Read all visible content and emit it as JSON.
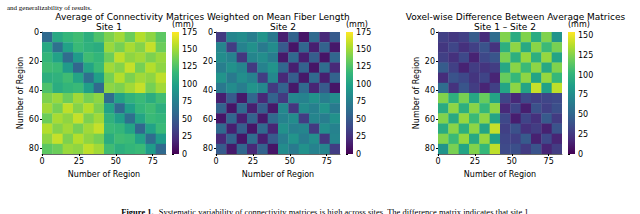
{
  "top_text": "and generalizability of results.",
  "group_titles": [
    "Average of Connectivity Matrices Weighted on Mean Fiber Length",
    "Voxel-wise Difference Between Average Matrices"
  ],
  "caption": {
    "label": "Figure 1.",
    "text": "Systematic variability of connectivity matrices is high across sites. The difference matrix indicates that site 1"
  },
  "chart_data": [
    {
      "type": "heatmap",
      "title": "Site 1",
      "xlabel": "Number of Region",
      "ylabel": "Number of Region",
      "xlim": [
        0,
        84
      ],
      "xticks": [
        0,
        25,
        50,
        75
      ],
      "ylim": [
        84,
        0
      ],
      "yticks": [
        0,
        20,
        40,
        60,
        80
      ],
      "color": "viridis",
      "edges": [
        0,
        7,
        14,
        21,
        28,
        35,
        42,
        49,
        56,
        63,
        70,
        77,
        84
      ],
      "values": [
        [
          60,
          105,
          115,
          120,
          110,
          125,
          140,
          150,
          135,
          155,
          145,
          130
        ],
        [
          105,
          65,
          100,
          118,
          112,
          108,
          148,
          138,
          152,
          142,
          160,
          135
        ],
        [
          115,
          100,
          62,
          95,
          120,
          115,
          135,
          158,
          145,
          150,
          140,
          148
        ],
        [
          120,
          118,
          95,
          58,
          102,
          118,
          150,
          142,
          160,
          138,
          155,
          145
        ],
        [
          110,
          112,
          120,
          102,
          64,
          98,
          138,
          155,
          140,
          150,
          145,
          158
        ],
        [
          125,
          108,
          115,
          118,
          98,
          60,
          145,
          140,
          150,
          160,
          138,
          150
        ],
        [
          140,
          148,
          135,
          150,
          138,
          145,
          62,
          100,
          112,
          118,
          108,
          120
        ],
        [
          150,
          138,
          158,
          142,
          155,
          140,
          100,
          60,
          98,
          115,
          120,
          110
        ],
        [
          135,
          152,
          145,
          160,
          140,
          150,
          112,
          98,
          64,
          102,
          118,
          115
        ],
        [
          155,
          142,
          150,
          138,
          150,
          160,
          118,
          115,
          102,
          58,
          100,
          118
        ],
        [
          145,
          160,
          140,
          155,
          145,
          138,
          108,
          120,
          118,
          100,
          62,
          96
        ],
        [
          130,
          135,
          148,
          145,
          158,
          150,
          120,
          110,
          115,
          118,
          96,
          60
        ]
      ],
      "colorbar": {
        "range": [
          0,
          175
        ],
        "ticks": [
          0,
          25,
          50,
          75,
          100,
          125,
          150,
          175
        ],
        "label": "(mm)"
      }
    },
    {
      "type": "heatmap",
      "title": "Site 2",
      "xlabel": "Number of Region",
      "xlim": [
        0,
        84
      ],
      "xticks": [
        0,
        25,
        50,
        75
      ],
      "ylim": [
        84,
        0
      ],
      "yticks": [
        0,
        20,
        40,
        60,
        80
      ],
      "color": "viridis",
      "edges": [
        0,
        7,
        14,
        21,
        28,
        35,
        42,
        49,
        56,
        63,
        70,
        77,
        84
      ],
      "values": [
        [
          30,
          80,
          85,
          75,
          90,
          70,
          15,
          55,
          10,
          60,
          20,
          50
        ],
        [
          80,
          32,
          78,
          88,
          72,
          85,
          50,
          10,
          58,
          15,
          55,
          12
        ],
        [
          85,
          78,
          28,
          80,
          86,
          74,
          12,
          60,
          15,
          52,
          10,
          58
        ],
        [
          75,
          88,
          80,
          30,
          78,
          90,
          58,
          15,
          55,
          10,
          62,
          20
        ],
        [
          90,
          72,
          86,
          78,
          32,
          82,
          20,
          52,
          12,
          60,
          15,
          55
        ],
        [
          70,
          85,
          74,
          90,
          82,
          30,
          55,
          12,
          60,
          18,
          50,
          10
        ],
        [
          15,
          50,
          12,
          58,
          20,
          55,
          30,
          82,
          78,
          88,
          75,
          85
        ],
        [
          55,
          10,
          60,
          15,
          52,
          12,
          82,
          28,
          85,
          76,
          90,
          72
        ],
        [
          10,
          58,
          15,
          55,
          12,
          60,
          78,
          85,
          32,
          80,
          74,
          88
        ],
        [
          60,
          15,
          52,
          10,
          60,
          18,
          88,
          76,
          80,
          30,
          86,
          78
        ],
        [
          20,
          55,
          10,
          62,
          15,
          50,
          75,
          90,
          74,
          86,
          28,
          80
        ],
        [
          50,
          12,
          58,
          20,
          55,
          10,
          85,
          72,
          88,
          78,
          80,
          32
        ]
      ],
      "colorbar": {
        "range": [
          0,
          175
        ],
        "ticks": [
          0,
          25,
          50,
          75,
          100,
          125,
          150,
          175
        ],
        "label": "(mm)"
      }
    },
    {
      "type": "heatmap",
      "title": "Site 1 – Site 2",
      "xlabel": "Number of Region",
      "ylabel": "Number of Region",
      "xlim": [
        0,
        84
      ],
      "xticks": [
        0,
        25,
        50,
        75
      ],
      "ylim": [
        84,
        0
      ],
      "yticks": [
        0,
        20,
        40,
        60,
        80
      ],
      "color": "viridis",
      "edges": [
        0,
        7,
        14,
        21,
        28,
        35,
        42,
        49,
        56,
        63,
        70,
        77,
        84
      ],
      "values": [
        [
          30,
          25,
          30,
          45,
          20,
          55,
          125,
          95,
          125,
          95,
          125,
          80
        ],
        [
          25,
          33,
          22,
          30,
          40,
          23,
          98,
          128,
          94,
          127,
          105,
          123
        ],
        [
          30,
          22,
          34,
          15,
          34,
          41,
          123,
          98,
          130,
          98,
          130,
          90
        ],
        [
          45,
          30,
          15,
          28,
          24,
          28,
          92,
          127,
          105,
          128,
          93,
          125
        ],
        [
          20,
          40,
          34,
          24,
          32,
          16,
          118,
          103,
          128,
          90,
          130,
          103
        ],
        [
          55,
          23,
          41,
          28,
          16,
          30,
          90,
          128,
          90,
          142,
          88,
          140
        ],
        [
          125,
          98,
          123,
          92,
          118,
          90,
          32,
          18,
          34,
          30,
          33,
          35
        ],
        [
          95,
          128,
          98,
          127,
          103,
          128,
          18,
          32,
          13,
          39,
          30,
          38
        ],
        [
          125,
          94,
          130,
          105,
          128,
          90,
          34,
          13,
          32,
          22,
          44,
          27
        ],
        [
          95,
          127,
          98,
          128,
          90,
          142,
          30,
          39,
          22,
          28,
          14,
          40
        ],
        [
          125,
          105,
          130,
          93,
          130,
          88,
          33,
          30,
          44,
          14,
          34,
          16
        ],
        [
          80,
          123,
          90,
          125,
          103,
          140,
          35,
          38,
          27,
          40,
          16,
          28
        ]
      ],
      "colorbar": {
        "range": [
          0,
          155
        ],
        "ticks": [
          0,
          25,
          50,
          75,
          100,
          125,
          150
        ],
        "label": "(mm)"
      }
    }
  ]
}
